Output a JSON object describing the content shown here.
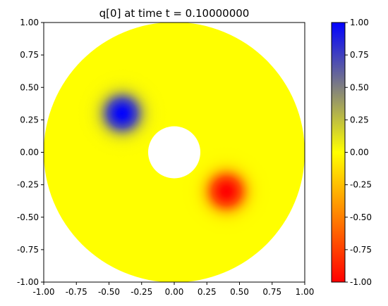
{
  "chart_data": {
    "type": "heatmap",
    "title": "q[0] at time t =     0.10000000",
    "xlim": [
      -1.0,
      1.0
    ],
    "ylim": [
      -1.0,
      1.0
    ],
    "x_ticks": [
      "-1.00",
      "-0.75",
      "-0.50",
      "-0.25",
      "0.00",
      "0.25",
      "0.50",
      "0.75",
      "1.00"
    ],
    "y_ticks": [
      "-1.00",
      "-0.75",
      "-0.50",
      "-0.25",
      "0.00",
      "0.25",
      "0.50",
      "0.75",
      "1.00"
    ],
    "domain": {
      "shape": "annulus",
      "outer_radius": 1.0,
      "inner_radius": 0.2
    },
    "features": [
      {
        "center": [
          -0.4,
          0.3
        ],
        "value": 1.0,
        "width": 0.12
      },
      {
        "center": [
          0.4,
          -0.3
        ],
        "value": -1.0,
        "width": 0.12
      }
    ],
    "colorbar": {
      "range": [
        -1.0,
        1.0
      ],
      "ticks": [
        "-1.00",
        "-0.75",
        "-0.50",
        "-0.25",
        "0.00",
        "0.25",
        "0.50",
        "0.75",
        "1.00"
      ],
      "stops": [
        {
          "value": -1.0,
          "color": "#ff0000"
        },
        {
          "value": 0.0,
          "color": "#ffff00"
        },
        {
          "value": 1.0,
          "color": "#0000ff"
        }
      ]
    },
    "grid": false
  }
}
